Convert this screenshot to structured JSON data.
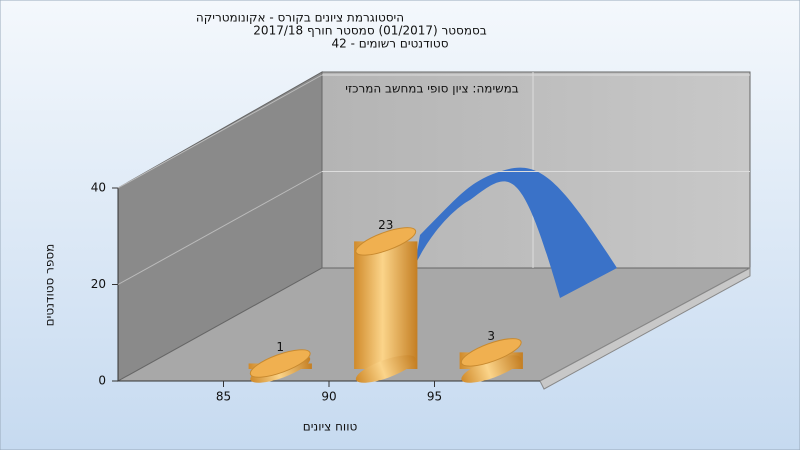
{
  "chart_data": {
    "type": "histogram",
    "title": "היסטוגרמת ציונים בקורס - אקונומטריקה",
    "subtitle": "בסמסטר (01/2017) סמסטר חורף 2017/18",
    "subtitle2": "סטודנטים רשומים - 42",
    "annotation": "במשימה: ציון סופי במחשב המרכזי",
    "x_label": "טווח ציונים",
    "y_label": "מספר סטודנטים",
    "bins": [
      85,
      90,
      95,
      100
    ],
    "values": [
      1,
      23,
      3
    ],
    "color": "#f0b050",
    "xlim": [
      80,
      100
    ],
    "xticks": [
      85,
      90,
      95
    ],
    "ylim": [
      0,
      40
    ],
    "yticks": [
      0,
      20,
      40
    ],
    "grid": true
  }
}
